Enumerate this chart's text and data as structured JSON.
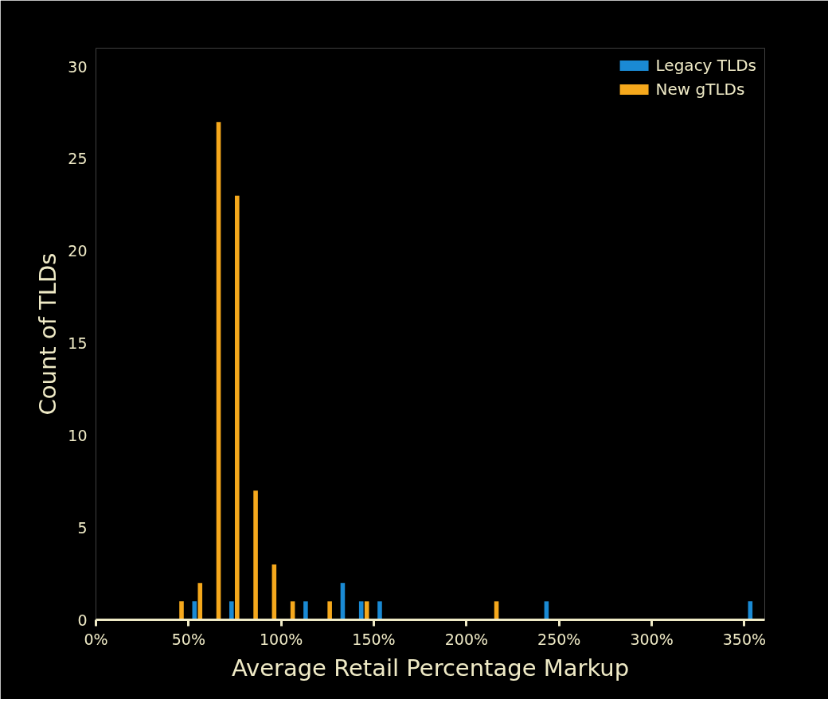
{
  "chart_data": {
    "type": "histogram",
    "xlabel": "Average Retail Percentage Markup",
    "ylabel": "Count of TLDs",
    "bins": [
      40,
      50,
      60,
      70,
      80,
      90,
      100,
      110,
      120,
      130,
      140,
      150,
      160,
      170,
      180,
      190,
      200,
      210,
      220,
      230,
      240,
      250,
      260,
      270,
      280,
      290,
      300,
      310,
      320,
      330,
      340,
      350,
      360
    ],
    "series": [
      {
        "name": "Legacy TLDs",
        "color": "#1a8ad4",
        "values": [
          0,
          1,
          0,
          1,
          0,
          0,
          0,
          1,
          0,
          2,
          1,
          1,
          0,
          0,
          0,
          0,
          0,
          0,
          0,
          0,
          1,
          0,
          0,
          0,
          0,
          0,
          0,
          0,
          0,
          0,
          0,
          1
        ]
      },
      {
        "name": "New gTLDs",
        "color": "#f5a81c",
        "values": [
          1,
          2,
          27,
          23,
          7,
          3,
          1,
          0,
          1,
          0,
          1,
          0,
          0,
          0,
          0,
          0,
          0,
          1,
          0,
          0,
          0,
          0,
          0,
          0,
          0,
          0,
          0,
          0,
          0,
          0,
          0,
          0
        ]
      }
    ],
    "xlim": [
      0,
      361
    ],
    "ylim": [
      0,
      31
    ],
    "xticks": [
      {
        "value": 0,
        "label": "0%"
      },
      {
        "value": 50,
        "label": "50%"
      },
      {
        "value": 100,
        "label": "100%"
      },
      {
        "value": 150,
        "label": "150%"
      },
      {
        "value": 200,
        "label": "200%"
      },
      {
        "value": 250,
        "label": "250%"
      },
      {
        "value": 300,
        "label": "300%"
      },
      {
        "value": 350,
        "label": "350%"
      }
    ],
    "yticks": [
      0,
      5,
      10,
      15,
      20,
      25,
      30
    ],
    "legend": "top right",
    "grid": false
  }
}
